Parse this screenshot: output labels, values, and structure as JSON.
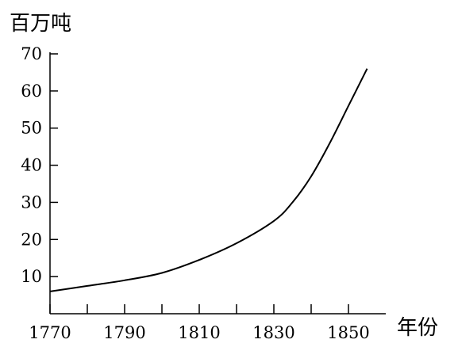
{
  "chart_data": {
    "type": "line",
    "title": "",
    "ylabel": "百万吨",
    "xlabel": "年份",
    "xlim": [
      1770,
      1860
    ],
    "ylim": [
      0,
      70
    ],
    "x_ticks": [
      1770,
      1780,
      1790,
      1800,
      1810,
      1820,
      1830,
      1840,
      1850
    ],
    "x_tick_labels": [
      "1770",
      "1790",
      "1810",
      "1830",
      "1850"
    ],
    "x_tick_label_values": [
      1770,
      1790,
      1810,
      1830,
      1850
    ],
    "y_ticks": [
      10,
      20,
      30,
      40,
      50,
      60,
      70
    ],
    "y_tick_labels": [
      "10",
      "20",
      "30",
      "40",
      "50",
      "60",
      "70"
    ],
    "grid": false,
    "series": [
      {
        "x": [
          1770,
          1780,
          1790,
          1800,
          1810,
          1820,
          1830,
          1835,
          1840,
          1845,
          1850,
          1855
        ],
        "y": [
          6,
          7.5,
          9,
          11,
          14.5,
          19,
          25,
          30,
          37,
          46,
          56,
          66
        ]
      }
    ]
  }
}
